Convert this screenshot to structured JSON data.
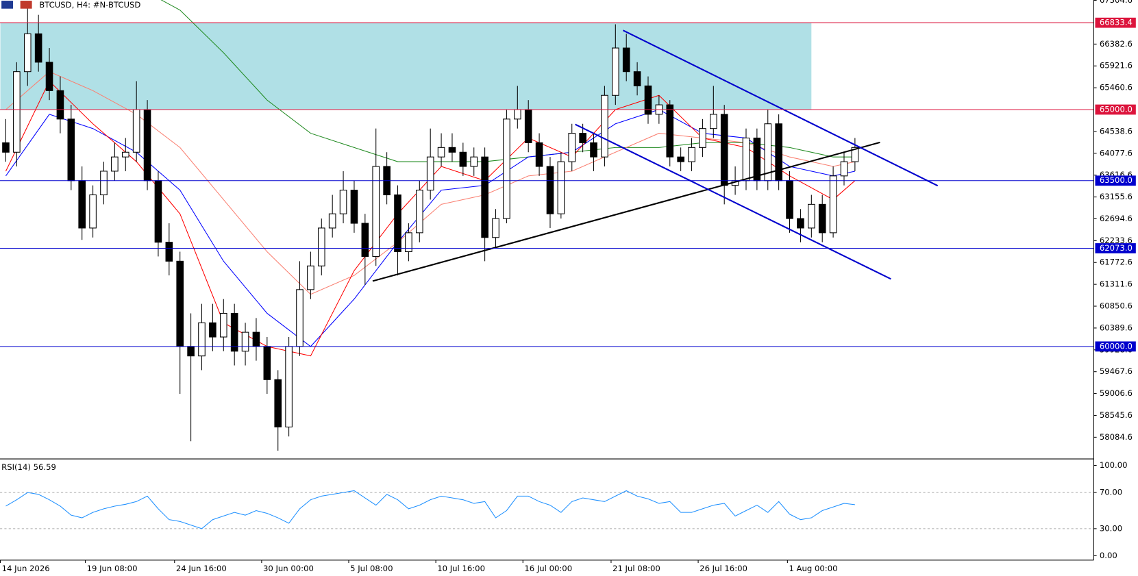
{
  "chart_data": {
    "type": "candlestick",
    "title": "BTCUSD, H4:  #N-BTCUSD",
    "up_color": "#ffffff",
    "down_color": "#000000",
    "candles": [
      [
        64300,
        64800,
        63900,
        64100
      ],
      [
        64100,
        66000,
        63800,
        65800
      ],
      [
        65800,
        67250,
        65500,
        66600
      ],
      [
        66600,
        67000,
        65800,
        66000
      ],
      [
        66000,
        66300,
        65200,
        65400
      ],
      [
        65400,
        65700,
        64500,
        64800
      ],
      [
        64800,
        65100,
        63300,
        63500
      ],
      [
        63500,
        63800,
        62250,
        62500
      ],
      [
        62500,
        63400,
        62300,
        63200
      ],
      [
        63200,
        63900,
        63000,
        63700
      ],
      [
        63700,
        64300,
        63500,
        64000
      ],
      [
        64000,
        64400,
        63700,
        64100
      ],
      [
        64100,
        65600,
        63900,
        65000
      ],
      [
        65000,
        65200,
        63300,
        63500
      ],
      [
        63500,
        63700,
        61900,
        62200
      ],
      [
        62200,
        62600,
        61500,
        61800
      ],
      [
        61800,
        62000,
        59000,
        60000
      ],
      [
        60000,
        60700,
        58000,
        59800
      ],
      [
        59800,
        60900,
        59500,
        60500
      ],
      [
        60500,
        60900,
        59900,
        60200
      ],
      [
        60200,
        61000,
        59900,
        60700
      ],
      [
        60700,
        60900,
        59600,
        59900
      ],
      [
        59900,
        60500,
        59600,
        60300
      ],
      [
        60300,
        60600,
        59700,
        60000
      ],
      [
        60000,
        60200,
        59000,
        59300
      ],
      [
        59300,
        59500,
        57800,
        58300
      ],
      [
        58300,
        60200,
        58100,
        60000
      ],
      [
        60000,
        61800,
        59800,
        61200
      ],
      [
        61200,
        62000,
        61000,
        61700
      ],
      [
        61700,
        62700,
        61500,
        62500
      ],
      [
        62500,
        63200,
        62300,
        62800
      ],
      [
        62800,
        63700,
        62600,
        63300
      ],
      [
        63300,
        63500,
        62400,
        62600
      ],
      [
        62600,
        62800,
        61300,
        61900
      ],
      [
        61900,
        64600,
        61700,
        63800
      ],
      [
        63800,
        64100,
        63000,
        63200
      ],
      [
        63200,
        63400,
        61500,
        62000
      ],
      [
        62000,
        62600,
        61800,
        62400
      ],
      [
        62400,
        63500,
        62200,
        63300
      ],
      [
        63300,
        64600,
        63100,
        64000
      ],
      [
        64000,
        64500,
        63800,
        64200
      ],
      [
        64200,
        64500,
        63900,
        64100
      ],
      [
        64100,
        64300,
        63600,
        63800
      ],
      [
        63800,
        64200,
        63600,
        64000
      ],
      [
        64000,
        64200,
        61800,
        62300
      ],
      [
        62300,
        62900,
        62100,
        62700
      ],
      [
        62700,
        65000,
        62600,
        64800
      ],
      [
        64800,
        65500,
        64600,
        65000
      ],
      [
        65000,
        65200,
        64100,
        64300
      ],
      [
        64300,
        64500,
        63600,
        63800
      ],
      [
        63800,
        64000,
        62500,
        62800
      ],
      [
        62800,
        64100,
        62700,
        63900
      ],
      [
        63900,
        64700,
        63700,
        64500
      ],
      [
        64500,
        64700,
        64100,
        64300
      ],
      [
        64300,
        64500,
        63700,
        64000
      ],
      [
        64000,
        65500,
        63800,
        65300
      ],
      [
        65300,
        66800,
        65100,
        66300
      ],
      [
        66300,
        66600,
        65600,
        65800
      ],
      [
        65800,
        66000,
        65300,
        65500
      ],
      [
        65500,
        65700,
        64700,
        64900
      ],
      [
        64900,
        65300,
        64700,
        65100
      ],
      [
        65100,
        65200,
        63800,
        64000
      ],
      [
        64000,
        64200,
        63700,
        63900
      ],
      [
        63900,
        64400,
        63700,
        64200
      ],
      [
        64200,
        64800,
        64000,
        64600
      ],
      [
        64600,
        65500,
        64400,
        64900
      ],
      [
        64900,
        65100,
        63000,
        63400
      ],
      [
        63400,
        63800,
        63200,
        63500
      ],
      [
        63500,
        64600,
        63300,
        64400
      ],
      [
        64400,
        64600,
        63300,
        63500
      ],
      [
        63500,
        65000,
        63300,
        64700
      ],
      [
        64700,
        64900,
        63300,
        63500
      ],
      [
        63500,
        63700,
        62400,
        62700
      ],
      [
        62700,
        62900,
        62200,
        62500
      ],
      [
        62500,
        63200,
        62300,
        63000
      ],
      [
        63000,
        63200,
        62200,
        62400
      ],
      [
        62400,
        63800,
        62300,
        63600
      ],
      [
        63600,
        64100,
        63400,
        63900
      ],
      [
        63900,
        64400,
        63700,
        64200
      ]
    ],
    "ylim": [
      57657,
      67313
    ],
    "yticks": [
      67304.6,
      66382.6,
      65921.6,
      65460.6,
      64538.6,
      64077.6,
      63616.6,
      63155.6,
      62694.6,
      62233.6,
      61772.6,
      61311.6,
      60850.6,
      60389.6,
      59928.6,
      59467.6,
      59006.6,
      58545.6,
      58084.6
    ],
    "xticks": [
      {
        "value": -0.5,
        "label": "14 Jun 2026"
      },
      {
        "value": 7.3,
        "label": "19 Jun 08:00"
      },
      {
        "value": 15.5,
        "label": "24 Jun 16:00"
      },
      {
        "value": 23.5,
        "label": "30 Jun 00:00"
      },
      {
        "value": 31.5,
        "label": "5 Jul 08:00"
      },
      {
        "value": 39.5,
        "label": "10 Jul 16:00"
      },
      {
        "value": 47.5,
        "label": "16 Jul 00:00"
      },
      {
        "value": 55.6,
        "label": "21 Jul 08:00"
      },
      {
        "value": 63.6,
        "label": "26 Jul 16:00"
      },
      {
        "value": 71.8,
        "label": "1 Aug 00:00"
      }
    ],
    "levels": [
      {
        "value": 66833.4,
        "label": "66833.4",
        "color": "#dc143c"
      },
      {
        "value": 65000,
        "label": "65000.0",
        "color": "#dc143c"
      },
      {
        "value": 63500,
        "label": "63500.0",
        "color": "#0000cd"
      },
      {
        "value": 62073,
        "label": "62073.0",
        "color": "#0000cd"
      },
      {
        "value": 60000,
        "label": "60000.0",
        "color": "#0000cd"
      }
    ],
    "zone": {
      "from": -0.5,
      "to": 74,
      "high": 66833.4,
      "low": 65000,
      "color": "#b0e0e6"
    },
    "trendlines": [
      {
        "color": "#000000",
        "x": [
          33.7,
          80.3
        ],
        "y": [
          61380,
          64308
        ]
      },
      {
        "color": "#0000cd",
        "x": [
          56.7,
          85.6
        ],
        "y": [
          66672,
          63393
        ]
      },
      {
        "color": "#0000cd",
        "x": [
          52.3,
          81.3
        ],
        "y": [
          64689,
          61425
        ]
      }
    ],
    "ma": [
      {
        "color": "#228b22",
        "x": [
          12,
          16,
          20,
          24,
          28,
          32,
          36,
          40,
          44,
          48,
          52,
          56,
          60,
          64,
          68,
          72,
          76,
          78
        ],
        "values": [
          67600,
          67100,
          66200,
          65200,
          64500,
          64200,
          63900,
          63900,
          63900,
          64000,
          64100,
          64200,
          64200,
          64300,
          64300,
          64200,
          64000,
          64000
        ]
      },
      {
        "color": "#fa8072",
        "x": [
          0,
          4,
          8,
          12,
          16,
          20,
          24,
          28,
          32,
          36,
          40,
          44,
          48,
          52,
          56,
          60,
          64,
          68,
          72,
          76,
          78
        ],
        "values": [
          65000,
          65800,
          65400,
          64900,
          64200,
          63100,
          62000,
          61100,
          61500,
          62200,
          63000,
          63200,
          63600,
          63700,
          64100,
          64500,
          64400,
          64300,
          64000,
          63800,
          63900
        ]
      },
      {
        "color": "#0000ff",
        "x": [
          0,
          4,
          8,
          12,
          16,
          20,
          24,
          28,
          32,
          36,
          40,
          44,
          48,
          52,
          56,
          60,
          64,
          68,
          72,
          76,
          78
        ],
        "values": [
          63600,
          64900,
          64600,
          64100,
          63300,
          61800,
          60700,
          60000,
          61000,
          62200,
          63300,
          63400,
          64000,
          64100,
          64700,
          65000,
          64500,
          64400,
          63800,
          63600,
          63700
        ]
      },
      {
        "color": "#ff0000",
        "x": [
          0,
          4,
          8,
          12,
          16,
          20,
          24,
          28,
          32,
          36,
          40,
          44,
          48,
          52,
          56,
          60,
          64,
          68,
          72,
          76,
          78
        ],
        "values": [
          63700,
          65600,
          64700,
          63900,
          62800,
          60500,
          60000,
          59800,
          61600,
          62800,
          63800,
          63500,
          64400,
          64000,
          65000,
          65300,
          64400,
          64200,
          63600,
          63100,
          63500
        ]
      }
    ],
    "rsi": {
      "title": "RSI(14) 56.59",
      "color": "#1e90ff",
      "ylim": [
        -4.8,
        105.6
      ],
      "yticks": [
        {
          "value": 100,
          "label": "100.00"
        },
        {
          "value": 70,
          "label": "70.00"
        },
        {
          "value": 30,
          "label": "30.00"
        },
        {
          "value": 0,
          "label": "0.00"
        }
      ],
      "levels": [
        70,
        30
      ],
      "values": [
        55,
        62,
        70,
        68,
        62,
        55,
        45,
        42,
        48,
        52,
        55,
        57,
        60,
        66,
        52,
        40,
        38,
        34,
        30,
        40,
        44,
        48,
        45,
        50,
        47,
        42,
        36,
        52,
        62,
        66,
        68,
        70,
        72,
        64,
        56,
        68,
        62,
        52,
        56,
        62,
        66,
        64,
        62,
        58,
        60,
        42,
        50,
        66,
        66,
        60,
        56,
        48,
        60,
        64,
        62,
        60,
        66,
        72,
        66,
        63,
        58,
        60,
        48,
        48,
        52,
        56,
        58,
        44,
        50,
        56,
        48,
        60,
        46,
        40,
        42,
        50,
        54,
        58,
        56.59
      ]
    }
  }
}
